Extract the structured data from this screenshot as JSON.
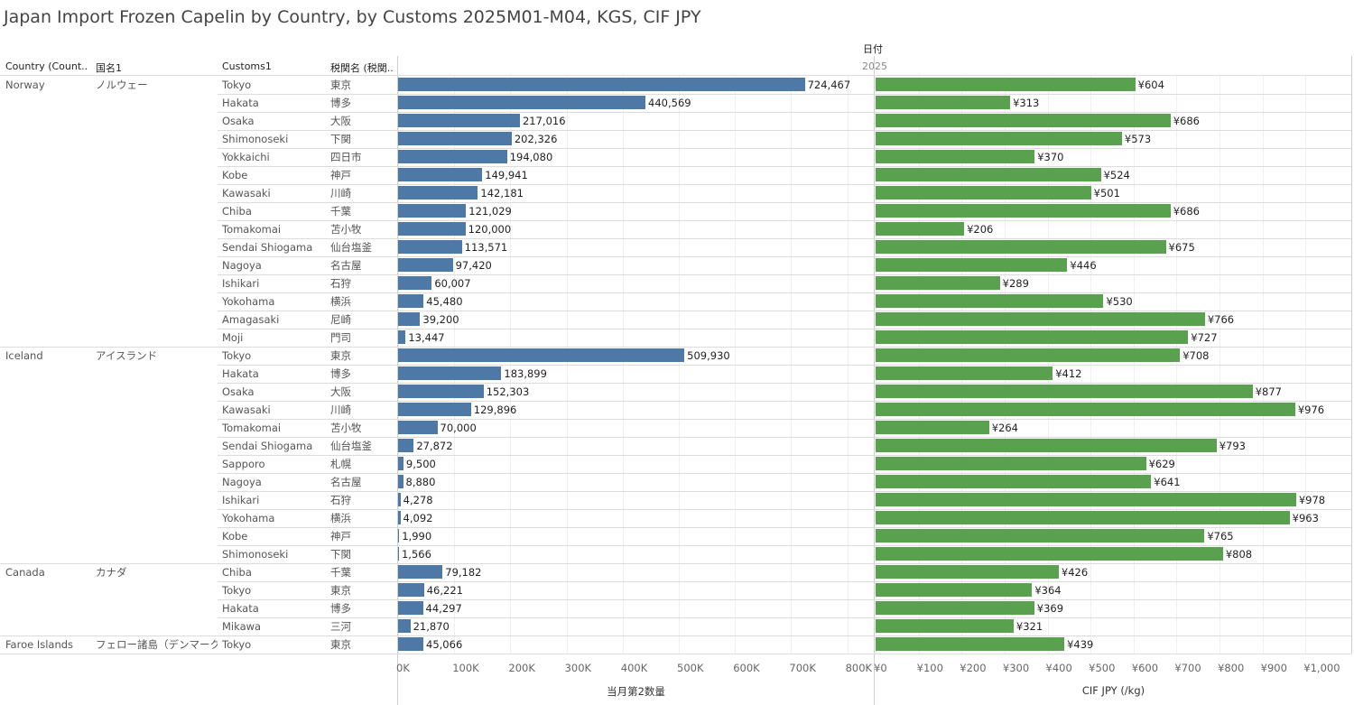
{
  "title": "Japan Import Frozen Capelin by Country, by Customs 2025M01-M04, KGS, CIF JPY",
  "headers": {
    "col1": "Country (Count..",
    "col2": "国名1",
    "col3": "Customs1",
    "col4": "税関名 (税関..",
    "date_field": "日付",
    "year": "2025"
  },
  "colors": {
    "quantity_bar": "#4e79a7",
    "price_bar": "#59a14f"
  },
  "chart_data": [
    {
      "type": "bar",
      "orientation": "horizontal",
      "xlabel": "当月第2数量",
      "xlim": [
        0,
        850000
      ],
      "ticks": [
        "0K",
        "100K",
        "200K",
        "300K",
        "400K",
        "500K",
        "600K",
        "700K",
        "800K"
      ],
      "tick_values": [
        0,
        100000,
        200000,
        300000,
        400000,
        500000,
        600000,
        700000,
        800000
      ]
    },
    {
      "type": "bar",
      "orientation": "horizontal",
      "xlabel": "CIF JPY (/kg)",
      "xlim": [
        0,
        1100
      ],
      "ticks": [
        "¥0",
        "¥100",
        "¥200",
        "¥300",
        "¥400",
        "¥500",
        "¥600",
        "¥700",
        "¥800",
        "¥900",
        "¥1,000"
      ],
      "tick_values": [
        0,
        100,
        200,
        300,
        400,
        500,
        600,
        700,
        800,
        900,
        1000
      ]
    }
  ],
  "groups": [
    {
      "country": "Norway",
      "country_jp": "ノルウェー",
      "rows": [
        {
          "customs": "Tokyo",
          "customs_jp": "東京",
          "qty": 724467,
          "qty_label": "724,467",
          "price": 604,
          "price_label": "¥604"
        },
        {
          "customs": "Hakata",
          "customs_jp": "博多",
          "qty": 440569,
          "qty_label": "440,569",
          "price": 313,
          "price_label": "¥313"
        },
        {
          "customs": "Osaka",
          "customs_jp": "大阪",
          "qty": 217016,
          "qty_label": "217,016",
          "price": 686,
          "price_label": "¥686"
        },
        {
          "customs": "Shimonoseki",
          "customs_jp": "下関",
          "qty": 202326,
          "qty_label": "202,326",
          "price": 573,
          "price_label": "¥573"
        },
        {
          "customs": "Yokkaichi",
          "customs_jp": "四日市",
          "qty": 194080,
          "qty_label": "194,080",
          "price": 370,
          "price_label": "¥370"
        },
        {
          "customs": "Kobe",
          "customs_jp": "神戸",
          "qty": 149941,
          "qty_label": "149,941",
          "price": 524,
          "price_label": "¥524"
        },
        {
          "customs": "Kawasaki",
          "customs_jp": "川崎",
          "qty": 142181,
          "qty_label": "142,181",
          "price": 501,
          "price_label": "¥501"
        },
        {
          "customs": "Chiba",
          "customs_jp": "千葉",
          "qty": 121029,
          "qty_label": "121,029",
          "price": 686,
          "price_label": "¥686"
        },
        {
          "customs": "Tomakomai",
          "customs_jp": "苫小牧",
          "qty": 120000,
          "qty_label": "120,000",
          "price": 206,
          "price_label": "¥206"
        },
        {
          "customs": "Sendai Shiogama",
          "customs_jp": "仙台塩釜",
          "qty": 113571,
          "qty_label": "113,571",
          "price": 675,
          "price_label": "¥675"
        },
        {
          "customs": "Nagoya",
          "customs_jp": "名古屋",
          "qty": 97420,
          "qty_label": "97,420",
          "price": 446,
          "price_label": "¥446"
        },
        {
          "customs": "Ishikari",
          "customs_jp": "石狩",
          "qty": 60007,
          "qty_label": "60,007",
          "price": 289,
          "price_label": "¥289"
        },
        {
          "customs": "Yokohama",
          "customs_jp": "横浜",
          "qty": 45480,
          "qty_label": "45,480",
          "price": 530,
          "price_label": "¥530"
        },
        {
          "customs": "Amagasaki",
          "customs_jp": "尼崎",
          "qty": 39200,
          "qty_label": "39,200",
          "price": 766,
          "price_label": "¥766"
        },
        {
          "customs": "Moji",
          "customs_jp": "門司",
          "qty": 13447,
          "qty_label": "13,447",
          "price": 727,
          "price_label": "¥727"
        }
      ]
    },
    {
      "country": "Iceland",
      "country_jp": "アイスランド",
      "rows": [
        {
          "customs": "Tokyo",
          "customs_jp": "東京",
          "qty": 509930,
          "qty_label": "509,930",
          "price": 708,
          "price_label": "¥708"
        },
        {
          "customs": "Hakata",
          "customs_jp": "博多",
          "qty": 183899,
          "qty_label": "183,899",
          "price": 412,
          "price_label": "¥412"
        },
        {
          "customs": "Osaka",
          "customs_jp": "大阪",
          "qty": 152303,
          "qty_label": "152,303",
          "price": 877,
          "price_label": "¥877"
        },
        {
          "customs": "Kawasaki",
          "customs_jp": "川崎",
          "qty": 129896,
          "qty_label": "129,896",
          "price": 976,
          "price_label": "¥976"
        },
        {
          "customs": "Tomakomai",
          "customs_jp": "苫小牧",
          "qty": 70000,
          "qty_label": "70,000",
          "price": 264,
          "price_label": "¥264"
        },
        {
          "customs": "Sendai Shiogama",
          "customs_jp": "仙台塩釜",
          "qty": 27872,
          "qty_label": "27,872",
          "price": 793,
          "price_label": "¥793"
        },
        {
          "customs": "Sapporo",
          "customs_jp": "札幌",
          "qty": 9500,
          "qty_label": "9,500",
          "price": 629,
          "price_label": "¥629"
        },
        {
          "customs": "Nagoya",
          "customs_jp": "名古屋",
          "qty": 8880,
          "qty_label": "8,880",
          "price": 641,
          "price_label": "¥641"
        },
        {
          "customs": "Ishikari",
          "customs_jp": "石狩",
          "qty": 4278,
          "qty_label": "4,278",
          "price": 978,
          "price_label": "¥978"
        },
        {
          "customs": "Yokohama",
          "customs_jp": "横浜",
          "qty": 4092,
          "qty_label": "4,092",
          "price": 963,
          "price_label": "¥963"
        },
        {
          "customs": "Kobe",
          "customs_jp": "神戸",
          "qty": 1990,
          "qty_label": "1,990",
          "price": 765,
          "price_label": "¥765"
        },
        {
          "customs": "Shimonoseki",
          "customs_jp": "下関",
          "qty": 1566,
          "qty_label": "1,566",
          "price": 808,
          "price_label": "¥808"
        }
      ]
    },
    {
      "country": "Canada",
      "country_jp": "カナダ",
      "rows": [
        {
          "customs": "Chiba",
          "customs_jp": "千葉",
          "qty": 79182,
          "qty_label": "79,182",
          "price": 426,
          "price_label": "¥426"
        },
        {
          "customs": "Tokyo",
          "customs_jp": "東京",
          "qty": 46221,
          "qty_label": "46,221",
          "price": 364,
          "price_label": "¥364"
        },
        {
          "customs": "Hakata",
          "customs_jp": "博多",
          "qty": 44297,
          "qty_label": "44,297",
          "price": 369,
          "price_label": "¥369"
        },
        {
          "customs": "Mikawa",
          "customs_jp": "三河",
          "qty": 21870,
          "qty_label": "21,870",
          "price": 321,
          "price_label": "¥321"
        }
      ]
    },
    {
      "country": "Faroe Islands",
      "country_jp": "フェロー諸島（デンマーク）",
      "rows": [
        {
          "customs": "Tokyo",
          "customs_jp": "東京",
          "qty": 45066,
          "qty_label": "45,066",
          "price": 439,
          "price_label": "¥439"
        }
      ]
    }
  ]
}
